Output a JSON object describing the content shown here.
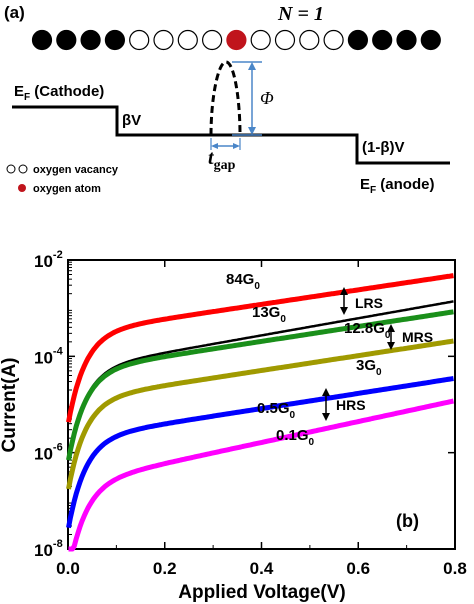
{
  "panel_a": {
    "label": "(a)",
    "n_label": "N = 1",
    "atoms": [
      "o",
      "o",
      "o",
      "o",
      "v",
      "v",
      "v",
      "v",
      "r",
      "v",
      "v",
      "v",
      "v",
      "o",
      "o",
      "o",
      "o"
    ],
    "cathode_label": "E",
    "cathode_sub": "F",
    "cathode_tail": " (Cathode)",
    "beta_label": "βV",
    "phi_label": "Φ",
    "tgap_label": "t",
    "tgap_sub": "gap",
    "one_minus_beta_label": "(1-β)V",
    "anode_label": "E",
    "anode_sub": "F",
    "anode_tail": " (anode)",
    "legend_vacancy": "oxygen vacancy",
    "legend_atom": "oxygen atom",
    "colors": {
      "atom": "#000000",
      "red_atom": "#c0141c",
      "arrow": "#4a86c8"
    }
  },
  "chart_data": {
    "type": "line",
    "panel_label": "(b)",
    "xlabel": "Applied Voltage(V)",
    "ylabel": "Current(A)",
    "xlim": [
      0.0,
      0.8
    ],
    "ylim_log10": [
      -8,
      -2
    ],
    "yscale": "log",
    "xticks": [
      "0.0",
      "0.2",
      "0.4",
      "0.6",
      "0.8"
    ],
    "yticks": [
      {
        "base": "10",
        "exp": "-8"
      },
      {
        "base": "10",
        "exp": "-6"
      },
      {
        "base": "10",
        "exp": "-4"
      },
      {
        "base": "10",
        "exp": "-2"
      }
    ],
    "series": [
      {
        "name": "84G",
        "sub": "0",
        "color": "#ff0000",
        "xmax": 0.8,
        "at02": 0.0006,
        "at08": 0.0048,
        "marker": true
      },
      {
        "name": "13G",
        "sub": "0",
        "color": "#000000",
        "xmax": 0.8,
        "at02": 0.00012,
        "at08": 0.0014,
        "marker": false
      },
      {
        "name": "12.8G",
        "sub": "0",
        "color": "#1a8f1a",
        "xmax": 0.8,
        "at02": 0.0001,
        "at08": 0.00085,
        "marker": true
      },
      {
        "name": "3G",
        "sub": "0",
        "color": "#a09a00",
        "xmax": 0.8,
        "at02": 2.5e-05,
        "at08": 0.00021,
        "marker": true
      },
      {
        "name": "0.5G",
        "sub": "0",
        "color": "#0000ff",
        "xmax": 0.8,
        "at02": 4e-06,
        "at08": 3.5e-05,
        "marker": true
      },
      {
        "name": "0.1G",
        "sub": "0",
        "color": "#ff00ff",
        "xmax": 0.8,
        "at02": 6e-07,
        "at08": 1.2e-05,
        "marker": true
      }
    ],
    "annotations": [
      {
        "text": "LRS"
      },
      {
        "text": "MRS"
      },
      {
        "text": "HRS"
      }
    ]
  }
}
